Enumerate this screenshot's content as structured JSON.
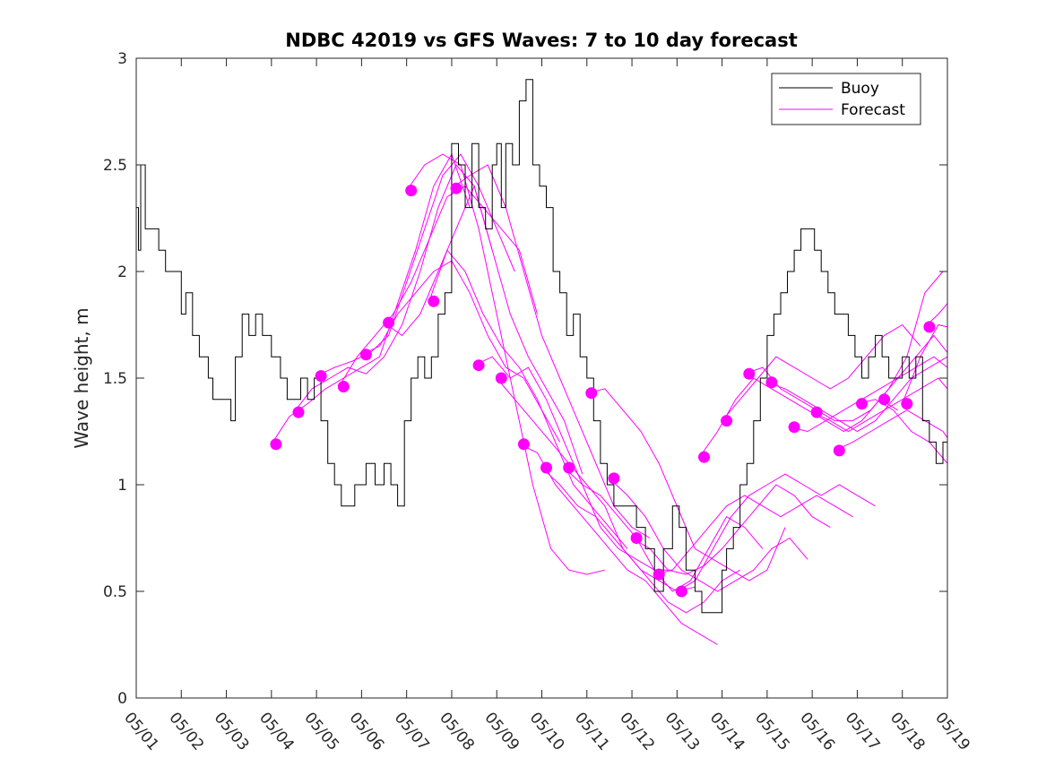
{
  "chart_data": {
    "type": "line",
    "title": "NDBC 42019 vs GFS Waves: 7 to 10 day forecast",
    "xlabel": "",
    "ylabel": "Wave height, m",
    "xlim": [
      "05/01",
      "05/19"
    ],
    "ylim": [
      0,
      3
    ],
    "x_tick_labels": [
      "05/01",
      "05/02",
      "05/03",
      "05/04",
      "05/05",
      "05/06",
      "05/07",
      "05/08",
      "05/09",
      "05/10",
      "05/11",
      "05/12",
      "05/13",
      "05/14",
      "05/15",
      "05/16",
      "05/17",
      "05/18",
      "05/19"
    ],
    "y_tick_labels": [
      "0",
      "0.5",
      "1",
      "1.5",
      "2",
      "2.5",
      "3"
    ],
    "grid": false,
    "legend_position": "top-right",
    "legend": [
      "Buoy",
      "Forecast"
    ],
    "colors": {
      "buoy": "#000000",
      "forecast": "#ff00ff",
      "axis": "#262626"
    },
    "buoy": {
      "name": "Buoy",
      "x": [
        0,
        0.05,
        0.1,
        0.2,
        0.35,
        0.5,
        0.65,
        0.8,
        1.0,
        1.1,
        1.25,
        1.4,
        1.6,
        1.7,
        1.9,
        2.1,
        2.2,
        2.35,
        2.5,
        2.65,
        2.8,
        3.0,
        3.1,
        3.2,
        3.35,
        3.5,
        3.65,
        3.8,
        3.95,
        4.1,
        4.25,
        4.4,
        4.55,
        4.7,
        4.85,
        5.0,
        5.1,
        5.3,
        5.5,
        5.65,
        5.8,
        5.95,
        6.1,
        6.25,
        6.4,
        6.55,
        6.7,
        6.85,
        7.0,
        7.15,
        7.3,
        7.45,
        7.6,
        7.75,
        7.9,
        8.0,
        8.1,
        8.2,
        8.35,
        8.5,
        8.65,
        8.8,
        8.95,
        9.1,
        9.25,
        9.4,
        9.55,
        9.7,
        9.85,
        10.0,
        10.15,
        10.3,
        10.45,
        10.6,
        10.75,
        10.9,
        11.1,
        11.3,
        11.5,
        11.7,
        11.9,
        12.05,
        12.2,
        12.4,
        12.55,
        12.7,
        12.85,
        13.0,
        13.1,
        13.25,
        13.4,
        13.55,
        13.7,
        13.85,
        14.0,
        14.15,
        14.3,
        14.45,
        14.6,
        14.75,
        14.9,
        15.05,
        15.2,
        15.35,
        15.5,
        15.65,
        15.8,
        15.95,
        16.1,
        16.25,
        16.4,
        16.55,
        16.7,
        16.85,
        17.0,
        17.15,
        17.3,
        17.45,
        17.6,
        17.75,
        17.9,
        18.0
      ],
      "y": [
        2.3,
        2.1,
        2.5,
        2.2,
        2.2,
        2.1,
        2.0,
        2.0,
        1.8,
        1.9,
        1.7,
        1.6,
        1.5,
        1.4,
        1.4,
        1.3,
        1.6,
        1.8,
        1.7,
        1.8,
        1.7,
        1.6,
        1.6,
        1.5,
        1.4,
        1.4,
        1.5,
        1.4,
        1.5,
        1.3,
        1.1,
        1.0,
        0.9,
        0.9,
        1.0,
        1.0,
        1.1,
        1.0,
        1.1,
        1.0,
        0.9,
        1.3,
        1.5,
        1.6,
        1.5,
        1.6,
        1.8,
        1.9,
        2.6,
        2.5,
        2.3,
        2.6,
        2.3,
        2.2,
        2.5,
        2.6,
        2.3,
        2.6,
        2.5,
        2.8,
        2.9,
        2.5,
        2.4,
        2.3,
        2.0,
        1.9,
        1.7,
        1.8,
        1.6,
        1.5,
        1.3,
        1.1,
        1.0,
        0.9,
        0.9,
        0.9,
        0.8,
        0.7,
        0.5,
        0.7,
        0.9,
        0.8,
        0.6,
        0.5,
        0.4,
        0.4,
        0.4,
        0.6,
        0.7,
        0.8,
        1.0,
        1.1,
        1.3,
        1.5,
        1.7,
        1.8,
        1.9,
        2.0,
        2.1,
        2.2,
        2.2,
        2.1,
        2.0,
        1.9,
        1.8,
        1.8,
        1.7,
        1.6,
        1.5,
        1.6,
        1.7,
        1.6,
        1.5,
        1.5,
        1.6,
        1.5,
        1.6,
        1.3,
        1.2,
        1.1,
        1.2,
        1.2
      ]
    },
    "forecasts": [
      {
        "name": "Forecast",
        "x": [
          3.0,
          3.4,
          3.8,
          4.2,
          4.6,
          5.0,
          5.4,
          5.8,
          6.2,
          6.6,
          7.0,
          7.4
        ],
        "y": [
          1.19,
          1.32,
          1.38,
          1.45,
          1.5,
          1.55,
          1.6,
          1.85,
          2.1,
          2.4,
          2.55,
          2.3
        ]
      },
      {
        "name": "Forecast",
        "x": [
          3.5,
          3.9,
          4.3,
          4.7,
          5.1,
          5.5,
          5.9,
          6.3,
          6.7,
          7.1,
          7.5,
          7.9
        ],
        "y": [
          1.34,
          1.45,
          1.5,
          1.55,
          1.52,
          1.6,
          1.75,
          2.0,
          2.3,
          2.5,
          2.4,
          2.1
        ]
      },
      {
        "name": "Forecast",
        "x": [
          4.0,
          4.4,
          4.8,
          5.2,
          5.6,
          6.0,
          6.4,
          6.8,
          7.2,
          7.6,
          8.0,
          8.4
        ],
        "y": [
          1.51,
          1.55,
          1.58,
          1.62,
          1.7,
          1.95,
          2.2,
          2.45,
          2.55,
          2.4,
          2.2,
          2.0
        ]
      },
      {
        "name": "Forecast",
        "x": [
          4.5,
          4.9,
          5.3,
          5.7,
          6.1,
          6.5,
          6.9,
          7.3,
          7.7,
          8.1,
          8.5,
          8.9
        ],
        "y": [
          1.46,
          1.6,
          1.7,
          1.8,
          1.95,
          2.15,
          2.35,
          2.4,
          2.3,
          2.2,
          2.1,
          1.8
        ]
      },
      {
        "name": "Forecast",
        "x": [
          5.0,
          5.4,
          5.8,
          6.2,
          6.6,
          7.0,
          7.4,
          7.8,
          8.2,
          8.6,
          9.0,
          9.4
        ],
        "y": [
          1.61,
          1.65,
          1.8,
          1.9,
          2.0,
          2.05,
          1.9,
          1.7,
          1.55,
          1.5,
          1.35,
          1.2
        ]
      },
      {
        "name": "Forecast",
        "x": [
          5.5,
          5.9,
          6.3,
          6.7,
          7.1,
          7.5,
          7.9,
          8.3,
          8.7,
          9.1,
          9.5,
          9.9
        ],
        "y": [
          1.76,
          1.7,
          1.8,
          2.0,
          2.2,
          2.4,
          2.1,
          1.8,
          1.6,
          1.45,
          1.3,
          1.05
        ]
      },
      {
        "name": "Forecast",
        "x": [
          6.0,
          6.4,
          6.8,
          7.2,
          7.6,
          8.0,
          8.4,
          8.8,
          9.2,
          9.6,
          10.0,
          10.4
        ],
        "y": [
          2.38,
          2.5,
          2.55,
          2.5,
          2.2,
          1.8,
          1.4,
          1.0,
          0.7,
          0.6,
          0.58,
          0.6
        ]
      },
      {
        "name": "Forecast",
        "x": [
          6.5,
          6.9,
          7.3,
          7.7,
          8.1,
          8.5,
          8.9,
          9.3,
          9.7,
          10.1,
          10.5,
          10.9
        ],
        "y": [
          1.86,
          2.1,
          2.0,
          1.8,
          1.65,
          1.55,
          1.4,
          1.2,
          1.0,
          0.9,
          0.8,
          0.7
        ]
      },
      {
        "name": "Forecast",
        "x": [
          7.0,
          7.4,
          7.8,
          8.2,
          8.6,
          9.0,
          9.4,
          9.8,
          10.2,
          10.6,
          11.0,
          11.4
        ],
        "y": [
          2.39,
          2.45,
          2.5,
          2.3,
          2.0,
          1.7,
          1.5,
          1.3,
          1.1,
          0.9,
          0.8,
          0.75
        ]
      },
      {
        "name": "Forecast",
        "x": [
          7.5,
          7.9,
          8.3,
          8.7,
          9.1,
          9.5,
          9.9,
          10.3,
          10.7,
          11.1,
          11.5,
          11.9
        ],
        "y": [
          1.56,
          1.6,
          1.5,
          1.55,
          1.4,
          1.2,
          1.0,
          0.8,
          0.7,
          0.65,
          0.6,
          0.6
        ]
      },
      {
        "name": "Forecast",
        "x": [
          8.0,
          8.4,
          8.8,
          9.2,
          9.6,
          10.0,
          10.4,
          10.8,
          11.2,
          11.6,
          12.0,
          12.4
        ],
        "y": [
          1.5,
          1.4,
          1.3,
          1.2,
          1.1,
          1.0,
          0.9,
          0.7,
          0.6,
          0.55,
          0.5,
          0.52
        ]
      },
      {
        "name": "Forecast",
        "x": [
          8.5,
          8.9,
          9.3,
          9.7,
          10.1,
          10.5,
          10.9,
          11.3,
          11.7,
          12.1,
          12.5,
          12.9
        ],
        "y": [
          1.19,
          1.15,
          1.0,
          0.9,
          0.8,
          0.7,
          0.6,
          0.55,
          0.45,
          0.35,
          0.3,
          0.25
        ]
      },
      {
        "name": "Forecast",
        "x": [
          9.0,
          9.4,
          9.8,
          10.2,
          10.6,
          11.0,
          11.4,
          11.8,
          12.2,
          12.6,
          13.0,
          13.4
        ],
        "y": [
          1.08,
          1.0,
          0.9,
          0.85,
          0.75,
          0.65,
          0.55,
          0.45,
          0.4,
          0.45,
          0.55,
          0.6
        ]
      },
      {
        "name": "Forecast",
        "x": [
          9.5,
          9.9,
          10.3,
          10.7,
          11.1,
          11.5,
          11.9,
          12.3,
          12.7,
          13.1,
          13.5,
          13.9
        ],
        "y": [
          1.08,
          1.0,
          0.95,
          0.85,
          0.75,
          0.6,
          0.5,
          0.55,
          0.7,
          0.85,
          0.8,
          0.7
        ]
      },
      {
        "name": "Forecast",
        "x": [
          10.0,
          10.4,
          10.8,
          11.2,
          11.6,
          12.0,
          12.4,
          12.8,
          13.2,
          13.6,
          14.0,
          14.4
        ],
        "y": [
          1.43,
          1.45,
          1.35,
          1.25,
          1.1,
          0.9,
          0.7,
          0.65,
          0.6,
          0.55,
          0.6,
          0.8
        ]
      },
      {
        "name": "Forecast",
        "x": [
          10.5,
          10.9,
          11.3,
          11.7,
          12.1,
          12.5,
          12.9,
          13.3,
          13.7,
          14.1,
          14.5,
          14.9
        ],
        "y": [
          1.03,
          0.95,
          0.85,
          0.7,
          0.6,
          0.55,
          0.5,
          0.55,
          0.6,
          0.7,
          0.75,
          0.65
        ]
      },
      {
        "name": "Forecast",
        "x": [
          11.0,
          11.4,
          11.8,
          12.2,
          12.6,
          13.0,
          13.4,
          13.8,
          14.2,
          14.6,
          15.0,
          15.4
        ],
        "y": [
          0.75,
          0.7,
          0.6,
          0.58,
          0.62,
          0.7,
          0.8,
          0.9,
          1.0,
          0.95,
          0.85,
          0.8
        ]
      },
      {
        "name": "Forecast",
        "x": [
          11.5,
          11.9,
          12.3,
          12.7,
          13.1,
          13.5,
          13.9,
          14.3,
          14.7,
          15.1,
          15.5,
          15.9
        ],
        "y": [
          0.58,
          0.6,
          0.7,
          0.8,
          0.9,
          0.95,
          0.9,
          0.85,
          0.9,
          0.95,
          0.9,
          0.85
        ]
      },
      {
        "name": "Forecast",
        "x": [
          12.0,
          12.4,
          12.8,
          13.2,
          13.6,
          14.0,
          14.4,
          14.8,
          15.2,
          15.6,
          16.0,
          16.4
        ],
        "y": [
          0.5,
          0.55,
          0.7,
          0.85,
          0.95,
          1.0,
          1.05,
          1.0,
          0.95,
          1.0,
          0.95,
          0.9
        ]
      },
      {
        "name": "Forecast",
        "x": [
          12.5,
          12.9,
          13.3,
          13.7,
          14.1,
          14.5,
          14.9,
          15.3,
          15.7,
          16.1,
          16.5,
          16.9
        ],
        "y": [
          1.13,
          1.25,
          1.4,
          1.5,
          1.45,
          1.4,
          1.35,
          1.3,
          1.25,
          1.3,
          1.4,
          1.35
        ]
      },
      {
        "name": "Forecast",
        "x": [
          13.0,
          13.4,
          13.8,
          14.2,
          14.6,
          15.0,
          15.4,
          15.8,
          16.2,
          16.6,
          17.0,
          17.4
        ],
        "y": [
          1.3,
          1.4,
          1.5,
          1.6,
          1.55,
          1.5,
          1.45,
          1.5,
          1.6,
          1.7,
          1.75,
          1.65
        ]
      },
      {
        "name": "Forecast",
        "x": [
          13.5,
          13.9,
          14.3,
          14.7,
          15.1,
          15.5,
          15.9,
          16.3,
          16.7,
          17.1,
          17.5,
          17.9
        ],
        "y": [
          1.52,
          1.55,
          1.45,
          1.4,
          1.35,
          1.3,
          1.3,
          1.35,
          1.45,
          1.6,
          1.9,
          2.0
        ]
      },
      {
        "name": "Forecast",
        "x": [
          14.0,
          14.4,
          14.8,
          15.2,
          15.6,
          16.0,
          16.4,
          16.8,
          17.2,
          17.6,
          18.0
        ],
        "y": [
          1.48,
          1.45,
          1.4,
          1.35,
          1.3,
          1.25,
          1.3,
          1.4,
          1.5,
          1.55,
          1.6
        ]
      },
      {
        "name": "Forecast",
        "x": [
          14.5,
          14.9,
          15.3,
          15.7,
          16.1,
          16.5,
          16.9,
          17.3,
          17.7,
          18.0
        ],
        "y": [
          1.27,
          1.25,
          1.3,
          1.35,
          1.4,
          1.45,
          1.5,
          1.55,
          1.6,
          1.55
        ]
      },
      {
        "name": "Forecast",
        "x": [
          15.0,
          15.4,
          15.8,
          16.2,
          16.6,
          17.0,
          17.4,
          17.8,
          18.0
        ],
        "y": [
          1.34,
          1.3,
          1.25,
          1.3,
          1.35,
          1.4,
          1.45,
          1.5,
          1.45
        ]
      },
      {
        "name": "Forecast",
        "x": [
          15.5,
          15.9,
          16.3,
          16.7,
          17.1,
          17.5,
          17.9,
          18.0
        ],
        "y": [
          1.16,
          1.2,
          1.25,
          1.3,
          1.35,
          1.3,
          1.25,
          1.22
        ]
      },
      {
        "name": "Forecast",
        "x": [
          16.0,
          16.4,
          16.8,
          17.2,
          17.6,
          18.0
        ],
        "y": [
          1.38,
          1.4,
          1.35,
          1.25,
          1.2,
          1.1
        ]
      },
      {
        "name": "Forecast",
        "x": [
          16.5,
          16.9,
          17.3,
          17.7,
          18.0
        ],
        "y": [
          1.4,
          1.5,
          1.6,
          1.7,
          1.62
        ]
      },
      {
        "name": "Forecast",
        "x": [
          17.0,
          17.4,
          17.8,
          18.0
        ],
        "y": [
          1.38,
          1.6,
          1.75,
          1.74
        ]
      },
      {
        "name": "Forecast",
        "x": [
          17.5,
          17.8,
          18.0
        ],
        "y": [
          1.74,
          1.8,
          1.85
        ]
      }
    ],
    "forecast_markers": {
      "name": "Forecast",
      "x": [
        3.1,
        3.6,
        4.1,
        4.6,
        5.1,
        5.6,
        6.1,
        6.6,
        7.1,
        7.6,
        8.1,
        8.6,
        9.1,
        9.6,
        10.1,
        10.6,
        11.1,
        11.6,
        12.1,
        12.6,
        13.1,
        13.6,
        14.1,
        14.6,
        15.1,
        15.6,
        16.1,
        16.6,
        17.1,
        17.6
      ],
      "y": [
        1.19,
        1.34,
        1.51,
        1.46,
        1.61,
        1.76,
        2.38,
        1.86,
        2.39,
        1.56,
        1.5,
        1.19,
        1.08,
        1.08,
        1.43,
        1.03,
        0.75,
        0.58,
        0.5,
        1.13,
        1.3,
        1.52,
        1.48,
        1.27,
        1.34,
        1.16,
        1.38,
        1.4,
        1.38,
        1.74
      ]
    }
  }
}
